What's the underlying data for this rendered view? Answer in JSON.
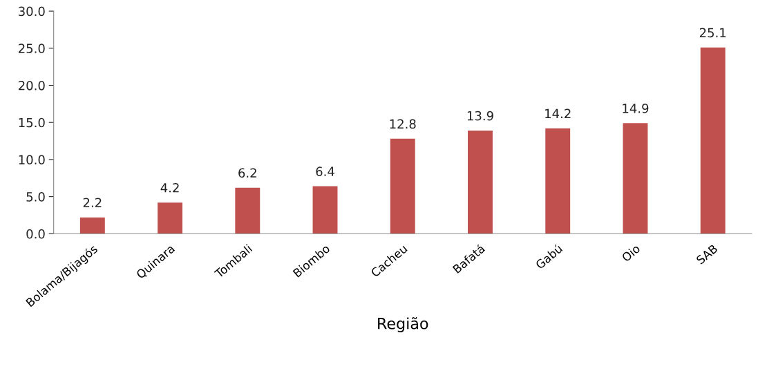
{
  "chart_data": {
    "type": "bar",
    "xlabel": "Região",
    "categories": [
      "Bolama/Bijagós",
      "Quinara",
      "Tombali",
      "Biombo",
      "Cacheu",
      "Bafatá",
      "Gabú",
      "Oio",
      "SAB"
    ],
    "values": [
      2.2,
      4.2,
      6.2,
      6.4,
      12.8,
      13.9,
      14.2,
      14.9,
      25.1
    ],
    "color": "#c0504d",
    "ylim": [
      0,
      30
    ],
    "yticks": [
      {
        "value": 0,
        "label": "0.0"
      },
      {
        "value": 5,
        "label": "5.0"
      },
      {
        "value": 10,
        "label": "10.0"
      },
      {
        "value": 15,
        "label": "15.0"
      },
      {
        "value": 20,
        "label": "20.0"
      },
      {
        "value": 25,
        "label": "25.0"
      },
      {
        "value": 30,
        "label": "30.0"
      }
    ],
    "data_labels": true,
    "grid": false,
    "legend": false
  }
}
